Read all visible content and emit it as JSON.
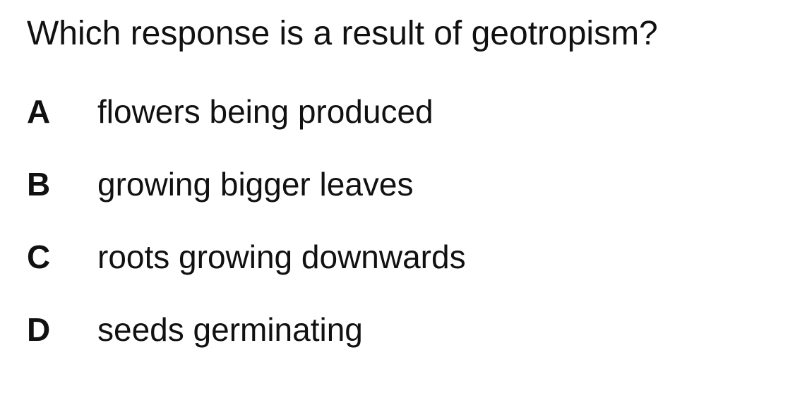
{
  "question": {
    "text": "Which response is a result of geotropism?"
  },
  "options": [
    {
      "letter": "A",
      "text": "flowers being produced"
    },
    {
      "letter": "B",
      "text": "growing bigger leaves"
    },
    {
      "letter": "C",
      "text": "roots growing downwards"
    },
    {
      "letter": "D",
      "text": "seeds germinating"
    }
  ]
}
